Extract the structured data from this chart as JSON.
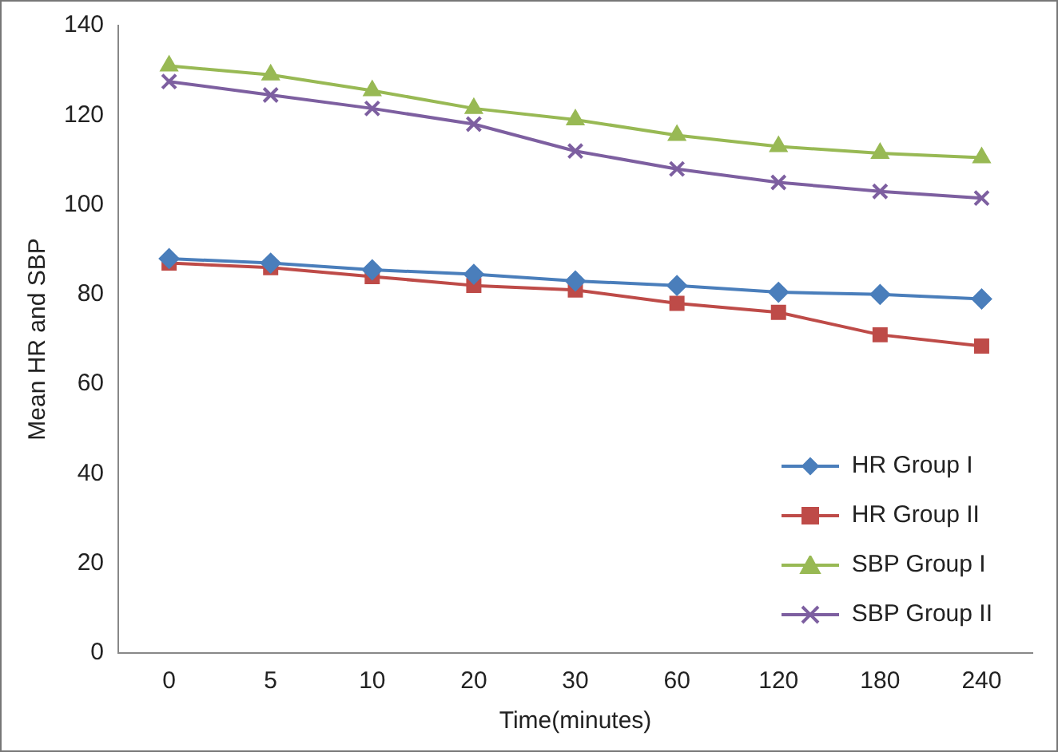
{
  "chart_data": {
    "type": "line",
    "xlabel": "Time(minutes)",
    "ylabel": "Mean HR and SBP",
    "categories": [
      "0",
      "5",
      "10",
      "20",
      "30",
      "60",
      "120",
      "180",
      "240"
    ],
    "ylim": [
      0,
      140
    ],
    "yticks": [
      0,
      20,
      40,
      60,
      80,
      100,
      120,
      140
    ],
    "grid": false,
    "legend": "bottom right",
    "line_style": "solid",
    "series": [
      {
        "name": "HR Group I",
        "color": "#4a7ebb",
        "marker": "diamond",
        "values": [
          88,
          87,
          85.5,
          84.5,
          83,
          82,
          80.5,
          80,
          79
        ]
      },
      {
        "name": "HR Group II",
        "color": "#be4b48",
        "marker": "square",
        "values": [
          87,
          86,
          84,
          82,
          81,
          78,
          76,
          71,
          68.5
        ]
      },
      {
        "name": "SBP Group I",
        "color": "#98b954",
        "marker": "triangle",
        "values": [
          131,
          129,
          125.5,
          121.5,
          119,
          115.5,
          113,
          111.5,
          110.5
        ]
      },
      {
        "name": "SBP Group II",
        "color": "#7d5fa0",
        "marker": "cross",
        "values": [
          127.5,
          124.5,
          121.5,
          118,
          112,
          108,
          105,
          103,
          101.5
        ]
      }
    ]
  }
}
